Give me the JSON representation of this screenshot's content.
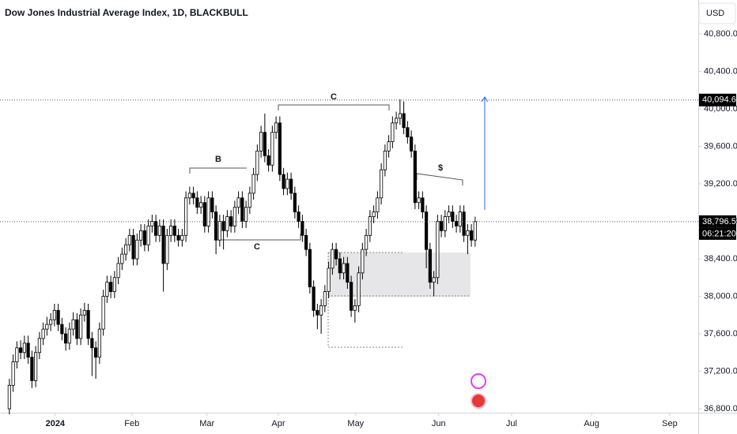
{
  "chart_data": {
    "type": "candlestick",
    "title": "Dow Jones Industrial Average Index, 1D, BLACKBULL",
    "currency": "USD",
    "up_color": "#ffffff",
    "down_color": "#000000",
    "wick_color": "#000000",
    "x": [
      0,
      1,
      2,
      3,
      4,
      5,
      6,
      7,
      8,
      9,
      10,
      11,
      12,
      13,
      14,
      15,
      16,
      17,
      18,
      19,
      20,
      21,
      22,
      23,
      24,
      25,
      26,
      27,
      28,
      29,
      30,
      31,
      32,
      33,
      34,
      35,
      36,
      37,
      38,
      39,
      40,
      41,
      42,
      43,
      44,
      45,
      46,
      47,
      48,
      49,
      50,
      51,
      52,
      53,
      54,
      55,
      56,
      57,
      58,
      59,
      60,
      61,
      62,
      63,
      64,
      65,
      66,
      67,
      68,
      69,
      70,
      71,
      72,
      73,
      74,
      75,
      76,
      77,
      78,
      79,
      80,
      81,
      82,
      83,
      84,
      85,
      86,
      87,
      88,
      89,
      90,
      91,
      92,
      93,
      94,
      95,
      96,
      97,
      98,
      99,
      100,
      101,
      102,
      103,
      104,
      105,
      106,
      107,
      108,
      109,
      110,
      111,
      112,
      113,
      114,
      115,
      116,
      117,
      118,
      119,
      120,
      121,
      122,
      123,
      124
    ],
    "open": [
      36800,
      37050,
      37300,
      37450,
      37400,
      37500,
      37350,
      37100,
      37400,
      37550,
      37650,
      37700,
      37750,
      37850,
      37700,
      37600,
      37500,
      37650,
      37750,
      37550,
      37800,
      37850,
      37550,
      37450,
      37350,
      37650,
      38000,
      38150,
      38050,
      38200,
      38350,
      38450,
      38550,
      38650,
      38400,
      38600,
      38700,
      38550,
      38750,
      38800,
      38650,
      38750,
      38350,
      38650,
      38750,
      38650,
      38600,
      38650,
      39050,
      39100,
      39050,
      38950,
      39000,
      38750,
      39050,
      38900,
      38600,
      38800,
      38700,
      38850,
      38750,
      38950,
      39050,
      38800,
      38950,
      39100,
      39300,
      39550,
      39750,
      39500,
      39400,
      39750,
      39850,
      39300,
      39150,
      39250,
      39100,
      38900,
      38800,
      38650,
      38500,
      38100,
      37850,
      37800,
      37900,
      38050,
      38300,
      38500,
      38400,
      38250,
      38350,
      38150,
      37850,
      37900,
      38250,
      38500,
      38650,
      38850,
      38900,
      39050,
      39350,
      39550,
      39650,
      39850,
      39900,
      39950,
      39800,
      39700,
      39550,
      39000,
      39050,
      38900,
      38500,
      38150,
      38200,
      38800,
      38700,
      38850,
      38900,
      38800,
      38750,
      38900,
      38650,
      38700,
      38600
    ],
    "high": [
      37120,
      37380,
      37520,
      37530,
      37580,
      37580,
      37420,
      37470,
      37620,
      37720,
      37780,
      37820,
      37920,
      37920,
      37770,
      37670,
      37720,
      37830,
      37820,
      37870,
      37930,
      37920,
      37620,
      37520,
      37720,
      38070,
      38220,
      38220,
      38270,
      38420,
      38520,
      38620,
      38720,
      38720,
      38670,
      38770,
      38770,
      38820,
      38870,
      38870,
      38820,
      38820,
      38720,
      38820,
      38820,
      38720,
      38720,
      39120,
      39170,
      39170,
      39120,
      39070,
      39070,
      39120,
      39120,
      38970,
      38870,
      38870,
      38920,
      38920,
      39020,
      39120,
      39120,
      39020,
      39170,
      39370,
      39620,
      39820,
      39950,
      39570,
      39820,
      39920,
      39920,
      39370,
      39320,
      39320,
      39170,
      38970,
      38870,
      38720,
      38570,
      38170,
      37920,
      37970,
      38120,
      38370,
      38570,
      38570,
      38470,
      38420,
      38420,
      38220,
      37970,
      38320,
      38570,
      38720,
      38920,
      38970,
      39120,
      39420,
      39620,
      39720,
      39920,
      39970,
      40100,
      40080,
      39870,
      39770,
      39620,
      39120,
      39120,
      38970,
      38570,
      38270,
      38870,
      38870,
      38920,
      38970,
      38970,
      38870,
      38970,
      38970,
      38770,
      38770,
      38850
    ],
    "low": [
      36740,
      36980,
      37230,
      37330,
      37330,
      37280,
      37020,
      37030,
      37330,
      37480,
      37580,
      37630,
      37680,
      37630,
      37530,
      37420,
      37430,
      37580,
      37480,
      37480,
      37730,
      37480,
      37150,
      37120,
      37280,
      37580,
      37930,
      37980,
      37980,
      38130,
      38280,
      38380,
      38480,
      38330,
      38330,
      38530,
      38480,
      38480,
      38680,
      38580,
      38580,
      38050,
      38280,
      38580,
      38580,
      38530,
      38530,
      38580,
      38980,
      38980,
      38880,
      38880,
      38680,
      38680,
      38830,
      38450,
      38530,
      38500,
      38630,
      38680,
      38680,
      38880,
      38730,
      38730,
      38880,
      39030,
      39230,
      39480,
      39430,
      39330,
      39330,
      39680,
      39230,
      39080,
      39080,
      39030,
      38830,
      38730,
      38580,
      38430,
      38030,
      37780,
      37650,
      37600,
      37830,
      37980,
      38230,
      38330,
      38180,
      38180,
      38080,
      37780,
      37720,
      37830,
      38180,
      38430,
      38580,
      38780,
      38830,
      38980,
      39280,
      39480,
      39580,
      39780,
      39830,
      39730,
      39630,
      39480,
      38930,
      38930,
      38830,
      38300,
      38080,
      38000,
      38130,
      38630,
      38630,
      38780,
      38730,
      38680,
      38680,
      38580,
      38450,
      38530,
      38530
    ],
    "close": [
      37050,
      37300,
      37450,
      37400,
      37500,
      37350,
      37100,
      37400,
      37550,
      37650,
      37700,
      37750,
      37850,
      37700,
      37600,
      37500,
      37650,
      37750,
      37550,
      37800,
      37850,
      37550,
      37450,
      37350,
      37650,
      38000,
      38150,
      38050,
      38200,
      38350,
      38450,
      38550,
      38650,
      38400,
      38600,
      38700,
      38550,
      38750,
      38800,
      38650,
      38750,
      38350,
      38650,
      38750,
      38650,
      38600,
      38650,
      39050,
      39100,
      39050,
      38950,
      39000,
      38750,
      39050,
      38900,
      38600,
      38800,
      38700,
      38850,
      38750,
      38950,
      39050,
      38800,
      38950,
      39100,
      39300,
      39550,
      39750,
      39500,
      39400,
      39750,
      39850,
      39300,
      39150,
      39250,
      39100,
      38900,
      38800,
      38650,
      38500,
      38100,
      37850,
      37800,
      37900,
      38050,
      38300,
      38500,
      38400,
      38250,
      38350,
      38150,
      37850,
      37900,
      38250,
      38500,
      38650,
      38850,
      38900,
      39050,
      39350,
      39550,
      39650,
      39850,
      39900,
      39950,
      39800,
      39700,
      39550,
      39000,
      39050,
      38900,
      38500,
      38150,
      38200,
      38800,
      38700,
      38850,
      38900,
      38800,
      38750,
      38900,
      38650,
      38700,
      38600,
      38797
    ],
    "xlim": [
      -2.5,
      183.4
    ],
    "xticks": [
      {
        "value": 12.2,
        "label": "2024"
      },
      {
        "value": 32.6,
        "label": "Feb"
      },
      {
        "value": 52.6,
        "label": "Mar"
      },
      {
        "value": 71.6,
        "label": "Apr"
      },
      {
        "value": 92.2,
        "label": "May"
      },
      {
        "value": 114.3,
        "label": "Jun"
      },
      {
        "value": 133.7,
        "label": "Jul"
      },
      {
        "value": 155,
        "label": "Aug"
      },
      {
        "value": 175.8,
        "label": "Sep"
      }
    ],
    "ylim": [
      36758,
      41162
    ],
    "yticks": [
      {
        "value": 36800,
        "label": "36,800.00"
      },
      {
        "value": 37200,
        "label": "37,200.00"
      },
      {
        "value": 37600,
        "label": "37,600.00"
      },
      {
        "value": 38000,
        "label": "38,000.00"
      },
      {
        "value": 38400,
        "label": "38,400.00"
      },
      {
        "value": 38800,
        "label": "38,800.00"
      },
      {
        "value": 39200,
        "label": "39,200.00"
      },
      {
        "value": 39600,
        "label": "39,600.00"
      },
      {
        "value": 40000,
        "label": "40,000.00"
      },
      {
        "value": 40400,
        "label": "40,400.00"
      },
      {
        "value": 40800,
        "label": "40,800.00"
      }
    ],
    "price_lines": [
      {
        "value": 40094.61,
        "label": "40,094.61"
      },
      {
        "value": 38796.55,
        "label": "38,796.55"
      }
    ],
    "countdown": "06:21:20",
    "annotations": [
      "B",
      "C",
      "C",
      "$"
    ]
  }
}
